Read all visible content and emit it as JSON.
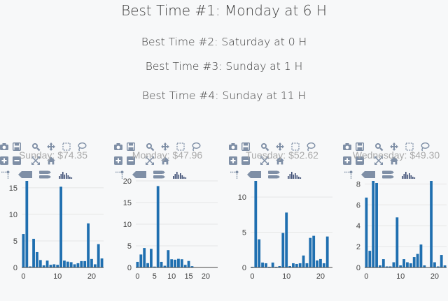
{
  "headlines": [
    "Best Time #1: Monday at 6 H",
    "Best Time #2: Saturday at 0 H",
    "Best Time #3: Sunday at 1 H",
    "Best Time #4: Sunday at 11 H"
  ],
  "colors": {
    "bar": "#1f6fb0",
    "grid": "#e6e6e6",
    "axis": "#444444",
    "title": "#aaaaaa",
    "toolbar": "#7f8fa6"
  },
  "toolbar_icons": [
    "camera-icon",
    "save-icon",
    "zoom-icon",
    "pan-icon",
    "box-select-icon",
    "lasso-icon",
    "zoom-in-icon",
    "zoom-out-icon",
    "autoscale-icon",
    "home-icon",
    "spike-lines-icon",
    "hover-closest-icon",
    "hover-compare-icon",
    "plotly-logo"
  ],
  "chart_data": [
    {
      "type": "bar",
      "title": "Sunday: $74.35",
      "x": [
        0,
        1,
        2,
        3,
        4,
        5,
        6,
        7,
        8,
        9,
        10,
        11,
        12,
        13,
        14,
        15,
        16,
        17,
        18,
        19,
        20,
        21,
        22,
        23
      ],
      "values": [
        6.3,
        16.3,
        0.2,
        5.4,
        2.9,
        1.4,
        0.4,
        1.3,
        0.5,
        0.6,
        0.5,
        15.2,
        1.3,
        1.1,
        1.0,
        0.6,
        0.8,
        1.2,
        1.2,
        8.3,
        1.6,
        0.6,
        4.4,
        1.7
      ],
      "ylim": [
        0,
        16.3
      ],
      "yticks": [
        0,
        5,
        10,
        15
      ],
      "xticks": [
        0,
        10,
        20
      ],
      "xlim": [
        -0.5,
        23.5
      ]
    },
    {
      "type": "bar",
      "title": "Monday: $47.96",
      "x": [
        0,
        1,
        2,
        3,
        4,
        5,
        6,
        7,
        8,
        9,
        10,
        11,
        12,
        13,
        14,
        15,
        16
      ],
      "values": [
        1.3,
        3.0,
        4.5,
        1.0,
        4.3,
        0.2,
        18.8,
        1.3,
        0.4,
        4.0,
        1.9,
        1.8,
        2.0,
        1.9,
        0.6,
        1.5,
        0.3
      ],
      "ylim": [
        0,
        20
      ],
      "yticks": [
        0,
        5,
        10,
        15,
        20
      ],
      "xticks": [
        0,
        5,
        10,
        15,
        20
      ],
      "xlim": [
        -0.5,
        23.5
      ]
    },
    {
      "type": "bar",
      "title": "Tuesday: $52.62",
      "x": [
        0,
        1,
        2,
        3,
        4,
        5,
        6,
        7,
        8,
        9,
        10,
        11,
        12,
        13,
        14,
        15,
        16,
        17,
        18,
        19,
        20,
        21,
        22,
        23
      ],
      "values": [
        0.1,
        12.3,
        4.0,
        0.7,
        0.6,
        0.1,
        0.7,
        0.1,
        0.2,
        4.9,
        7.8,
        0.2,
        0.6,
        0.5,
        0.6,
        1.7,
        0.6,
        4.2,
        4.5,
        1.0,
        1.2,
        0.6,
        4.4,
        0
      ],
      "ylim": [
        0,
        12.3
      ],
      "yticks": [
        0,
        5,
        10
      ],
      "xticks": [
        0,
        10,
        20
      ],
      "xlim": [
        -0.5,
        23.5
      ]
    },
    {
      "type": "bar",
      "title": "Wednesday: $49.30",
      "x": [
        0,
        1,
        2,
        3,
        4,
        5,
        6,
        7,
        8,
        9,
        10,
        11,
        12,
        13,
        14,
        15,
        16,
        17,
        18,
        19,
        20,
        21,
        22,
        23
      ],
      "values": [
        6.7,
        1.6,
        8.3,
        8.1,
        0.2,
        0.8,
        0.1,
        0.1,
        0.5,
        4.8,
        0.2,
        0.8,
        0.5,
        0.4,
        1.0,
        1.3,
        2.2,
        0.2,
        0,
        8.3,
        0.5,
        0.1,
        1.2,
        0.2
      ],
      "ylim": [
        0,
        8.3
      ],
      "yticks": [
        0,
        2,
        4,
        6,
        8
      ],
      "xticks": [
        0,
        10,
        20
      ],
      "xlim": [
        -0.5,
        23.5
      ]
    }
  ]
}
